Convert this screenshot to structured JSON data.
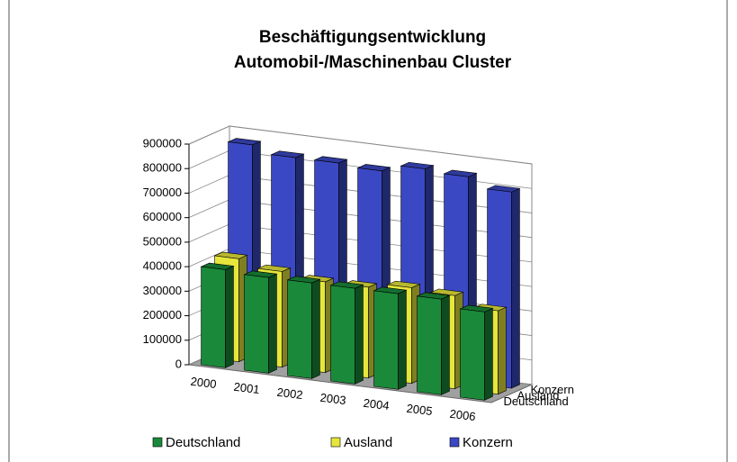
{
  "chart_data": {
    "type": "bar3d",
    "title": [
      "Beschäftigungsentwicklung",
      "Automobil-/Maschinenbau Cluster"
    ],
    "categories": [
      "2000",
      "2001",
      "2002",
      "2003",
      "2004",
      "2005",
      "2006"
    ],
    "series": [
      {
        "name": "Deutschland",
        "color": "#1a8a3a",
        "values": [
          400000,
          390000,
          390000,
          390000,
          390000,
          390000,
          360000
        ]
      },
      {
        "name": "Ausland",
        "color": "#e6e63c",
        "values": [
          420000,
          390000,
          370000,
          370000,
          390000,
          380000,
          340000
        ]
      },
      {
        "name": "Konzern",
        "color": "#3b48c4",
        "values": [
          860000,
          830000,
          830000,
          820000,
          850000,
          840000,
          800000
        ]
      }
    ],
    "ylim": [
      0,
      900000
    ],
    "yticks": [
      0,
      100000,
      200000,
      300000,
      400000,
      500000,
      600000,
      700000,
      800000,
      900000
    ],
    "grid": true,
    "legend": "bottom"
  }
}
